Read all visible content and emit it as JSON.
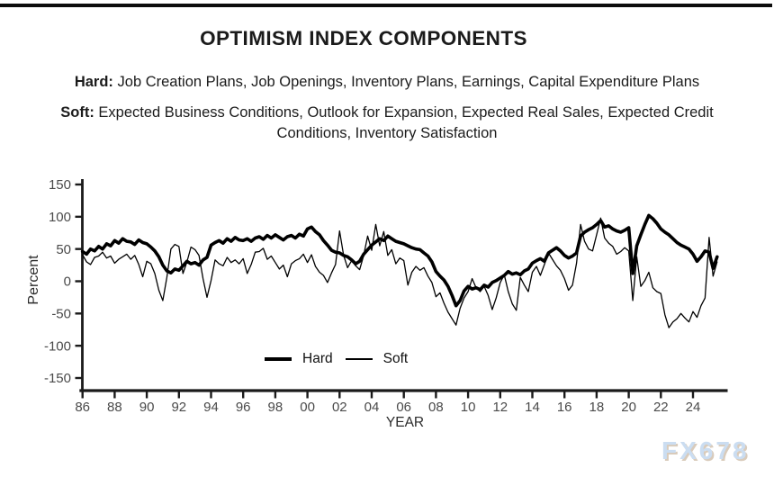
{
  "page": {
    "title": "OPTIMISM INDEX COMPONENTS",
    "hard_label": "Hard:",
    "hard_text": " Job Creation Plans, Job Openings, Inventory Plans, Earnings, Capital Expenditure Plans",
    "soft_label": "Soft:",
    "soft_text": " Expected Business Conditions, Outlook for Expansion, Expected Real Sales, Expected Credit Conditions, Inventory Satisfaction",
    "watermark": "FX678"
  },
  "colors": {
    "line": "#000000",
    "axis": "#1a1a1a",
    "tick_label": "#4a4a4a"
  },
  "chart_data": {
    "type": "line",
    "title": "OPTIMISM INDEX COMPONENTS",
    "xlabel": "YEAR",
    "ylabel": "Percent",
    "ylim": [
      -150,
      150
    ],
    "x_range": [
      1986.0,
      2025.5
    ],
    "grid": false,
    "legend_position": "bottom-center-inside",
    "legend": [
      "Hard",
      "Soft"
    ],
    "y_ticks": [
      150,
      100,
      50,
      0,
      -50,
      -100,
      -150
    ],
    "x_tick_years": [
      1986,
      1988,
      1990,
      1992,
      1994,
      1996,
      1998,
      2000,
      2002,
      2004,
      2006,
      2008,
      2010,
      2012,
      2014,
      2016,
      2018,
      2020,
      2022,
      2024
    ],
    "x_tick_labels": [
      "86",
      "88",
      "90",
      "92",
      "94",
      "96",
      "98",
      "00",
      "02",
      "04",
      "06",
      "08",
      "10",
      "12",
      "14",
      "16",
      "18",
      "20",
      "22",
      "24"
    ],
    "x_start": 1986.0,
    "x_step": 0.25,
    "series": [
      {
        "name": "Hard",
        "stroke_width": 3.6,
        "values": [
          46,
          42,
          50,
          47,
          54,
          50,
          58,
          55,
          63,
          59,
          66,
          62,
          61,
          57,
          64,
          60,
          58,
          53,
          47,
          38,
          25,
          16,
          13,
          19,
          17,
          24,
          31,
          27,
          29,
          25,
          33,
          37,
          56,
          60,
          63,
          59,
          66,
          62,
          68,
          64,
          63,
          66,
          62,
          67,
          69,
          65,
          71,
          67,
          72,
          68,
          64,
          69,
          71,
          67,
          73,
          70,
          81,
          84,
          77,
          72,
          63,
          56,
          48,
          45,
          44,
          40,
          38,
          33,
          27,
          31,
          42,
          49,
          56,
          61,
          66,
          63,
          70,
          66,
          62,
          60,
          58,
          55,
          52,
          50,
          49,
          44,
          39,
          30,
          15,
          8,
          2,
          -8,
          -22,
          -38,
          -30,
          -15,
          -8,
          -12,
          -10,
          -13,
          -6,
          -9,
          -2,
          1,
          5,
          9,
          15,
          11,
          13,
          10,
          16,
          19,
          28,
          32,
          35,
          31,
          44,
          48,
          52,
          47,
          40,
          36,
          39,
          44,
          70,
          76,
          80,
          83,
          88,
          94,
          84,
          86,
          81,
          78,
          76,
          79,
          83,
          12,
          55,
          72,
          88,
          102,
          97,
          90,
          81,
          76,
          72,
          66,
          60,
          56,
          53,
          50,
          42,
          31,
          38,
          47,
          45,
          20,
          38
        ]
      },
      {
        "name": "Soft",
        "stroke_width": 1.3,
        "values": [
          41,
          30,
          26,
          37,
          39,
          45,
          36,
          39,
          28,
          34,
          38,
          42,
          34,
          40,
          26,
          7,
          31,
          27,
          12,
          -14,
          -30,
          6,
          50,
          57,
          54,
          12,
          30,
          53,
          49,
          40,
          4,
          -25,
          1,
          33,
          27,
          24,
          37,
          29,
          33,
          27,
          35,
          12,
          26,
          45,
          46,
          51,
          34,
          39,
          29,
          19,
          25,
          7,
          27,
          32,
          35,
          42,
          29,
          41,
          23,
          14,
          9,
          -2,
          13,
          26,
          78,
          40,
          21,
          32,
          24,
          18,
          40,
          70,
          48,
          88,
          55,
          77,
          40,
          49,
          27,
          36,
          32,
          -6,
          14,
          23,
          17,
          21,
          8,
          -2,
          -24,
          -18,
          -34,
          -48,
          -58,
          -68,
          -42,
          -26,
          -16,
          4,
          -10,
          -16,
          -8,
          -22,
          -44,
          -26,
          -2,
          10,
          -16,
          -35,
          -45,
          6,
          -6,
          -16,
          14,
          23,
          9,
          26,
          44,
          34,
          24,
          17,
          4,
          -14,
          -6,
          28,
          88,
          62,
          50,
          47,
          72,
          98,
          67,
          59,
          54,
          42,
          46,
          52,
          47,
          -30,
          38,
          -8,
          1,
          14,
          -10,
          -16,
          -19,
          -52,
          -72,
          -63,
          -58,
          -50,
          -57,
          -63,
          -47,
          -56,
          -38,
          -26,
          68,
          8,
          30
        ]
      }
    ]
  }
}
